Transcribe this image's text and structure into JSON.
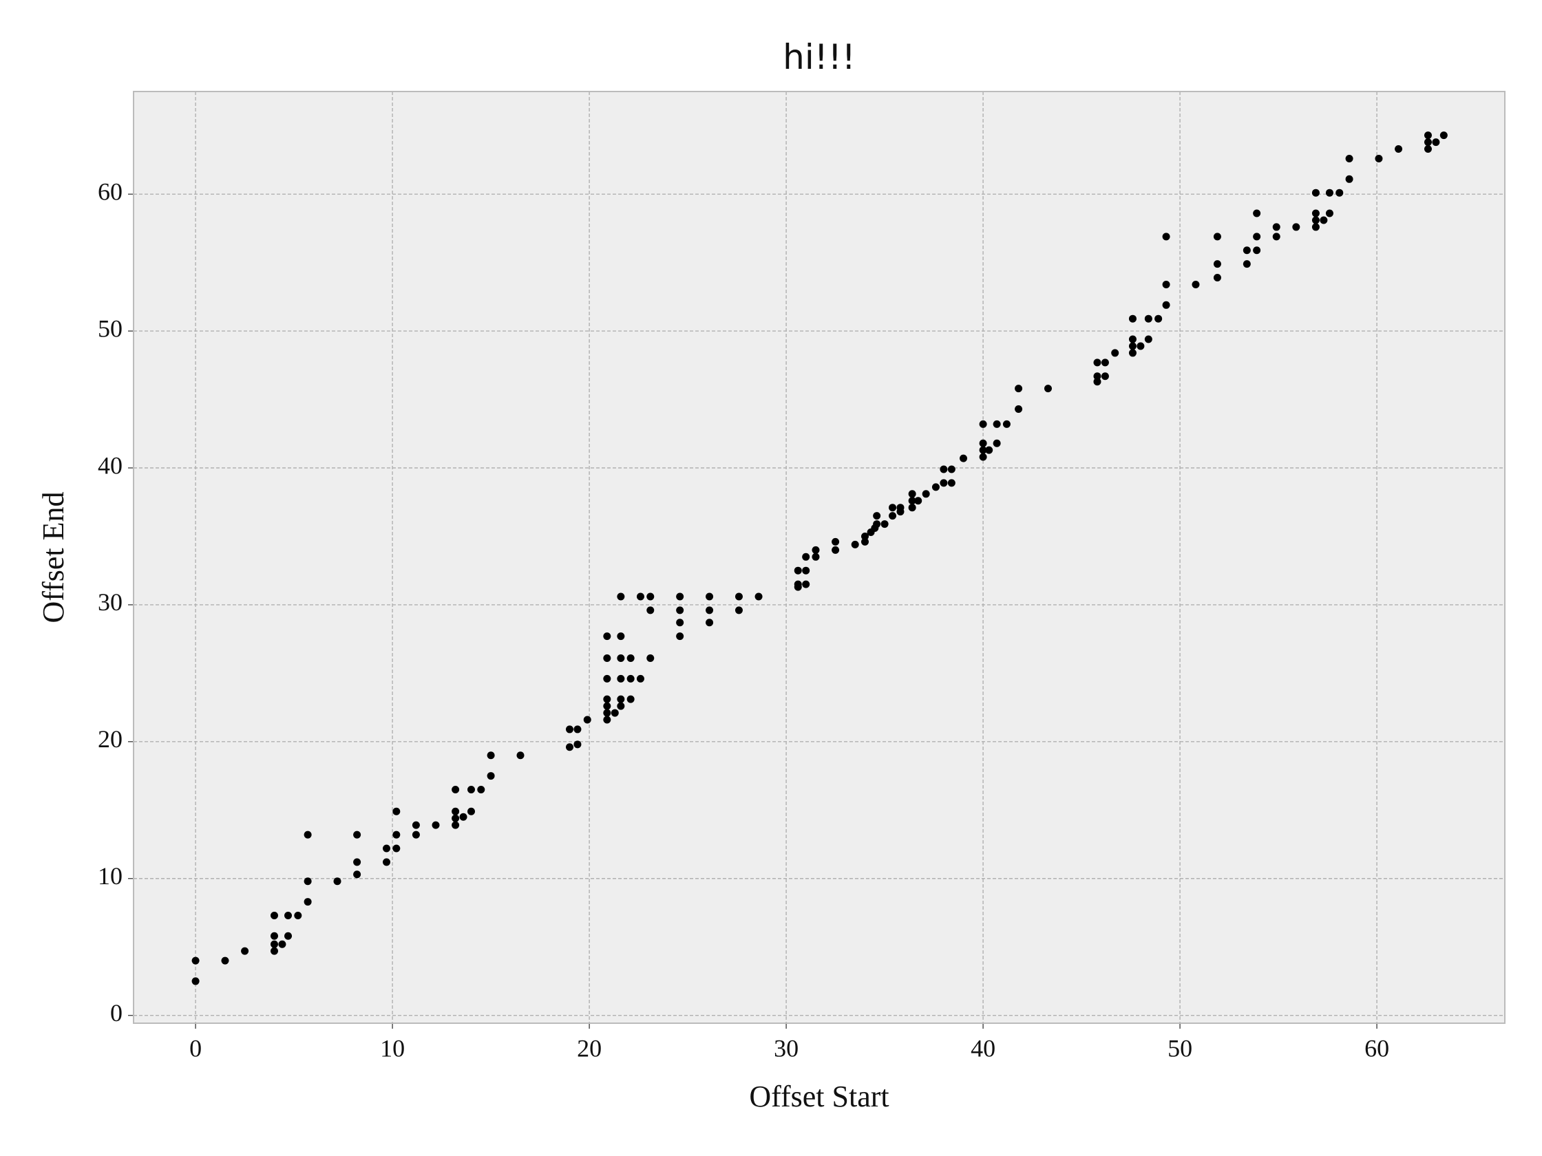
{
  "chart_data": {
    "type": "scatter",
    "title": "hi!!!",
    "x_label": "Offset Start",
    "y_label": "Offset End",
    "color": "#000000",
    "background": "#eeeeee",
    "grid": true,
    "xlim": [
      -3.15,
      66.5
    ],
    "ylim": [
      -0.57,
      67.5
    ],
    "xticks": [
      0,
      10,
      20,
      30,
      40,
      50,
      60
    ],
    "yticks": [
      0,
      10,
      20,
      30,
      40,
      50,
      60
    ],
    "x": [
      0,
      0,
      1.5,
      2.5,
      4,
      4,
      4,
      4,
      4.4,
      4.7,
      4.7,
      5.2,
      5.7,
      5.7,
      5.7,
      7.2,
      8.2,
      8.2,
      8.2,
      9.7,
      9.7,
      10.2,
      10.2,
      10.2,
      11.2,
      11.2,
      12.2,
      13.2,
      13.2,
      13.2,
      13.2,
      13.6,
      14,
      14,
      14.5,
      15,
      15,
      16.5,
      19,
      19,
      19.4,
      19.4,
      19.9,
      20.9,
      20.9,
      20.9,
      20.9,
      20.9,
      20.9,
      20.9,
      21.3,
      21.6,
      21.6,
      21.6,
      21.6,
      21.6,
      21.6,
      22.1,
      22.1,
      22.1,
      22.6,
      22.6,
      23.1,
      23.1,
      23.1,
      24.6,
      24.6,
      24.6,
      24.6,
      26.1,
      26.1,
      26.1,
      27.6,
      27.6,
      28.6,
      30.6,
      30.6,
      30.6,
      31,
      31,
      31,
      31.5,
      31.5,
      32.5,
      32.5,
      33.5,
      34,
      34,
      34.3,
      34.5,
      34.6,
      34.6,
      35,
      35.4,
      35.4,
      35.8,
      35.8,
      36.4,
      36.4,
      36.4,
      36.7,
      37.1,
      37.6,
      38,
      38,
      38.4,
      38.4,
      39,
      40,
      40,
      40,
      40,
      40.3,
      40.7,
      40.7,
      41.2,
      41.8,
      41.8,
      43.3,
      45.8,
      45.8,
      45.8,
      46.2,
      46.2,
      46.7,
      47.6,
      47.6,
      47.6,
      47.6,
      48,
      48.4,
      48.4,
      48.9,
      49.3,
      49.3,
      49.3,
      50.8,
      51.9,
      51.9,
      51.9,
      53.4,
      53.4,
      53.9,
      53.9,
      53.9,
      54.9,
      54.9,
      55.9,
      56.9,
      56.9,
      56.9,
      56.9,
      57.3,
      57.6,
      57.6,
      58.1,
      58.6,
      58.6,
      60.1,
      61.1,
      62.6,
      62.6,
      62.6,
      63,
      63.4
    ],
    "y": [
      4.0,
      2.5,
      4.0,
      4.7,
      7.3,
      5.8,
      5.2,
      4.7,
      5.2,
      7.3,
      5.8,
      7.3,
      13.2,
      9.8,
      8.3,
      9.8,
      13.2,
      11.2,
      10.3,
      12.2,
      11.2,
      14.9,
      13.2,
      12.2,
      13.9,
      13.2,
      13.9,
      16.5,
      14.9,
      14.4,
      13.9,
      14.5,
      16.5,
      14.9,
      16.5,
      19.0,
      17.5,
      19.0,
      20.9,
      19.6,
      20.9,
      19.8,
      21.6,
      27.7,
      26.1,
      24.6,
      23.1,
      22.6,
      22.1,
      21.6,
      22.1,
      30.6,
      27.7,
      26.1,
      24.6,
      23.1,
      22.6,
      26.1,
      24.6,
      23.1,
      30.6,
      24.6,
      30.6,
      29.6,
      26.1,
      30.6,
      29.6,
      28.7,
      27.7,
      30.6,
      29.6,
      28.7,
      30.6,
      29.6,
      30.6,
      32.5,
      31.5,
      31.3,
      33.5,
      32.5,
      31.5,
      34.0,
      33.5,
      34.6,
      34.0,
      34.4,
      35.0,
      34.6,
      35.3,
      35.6,
      36.5,
      35.9,
      35.9,
      37.1,
      36.5,
      37.1,
      36.8,
      38.1,
      37.6,
      37.1,
      37.6,
      38.1,
      38.6,
      39.9,
      38.9,
      39.9,
      38.9,
      40.7,
      43.2,
      41.8,
      41.3,
      40.8,
      41.3,
      43.2,
      41.8,
      43.2,
      45.8,
      44.3,
      45.8,
      47.7,
      46.7,
      46.3,
      47.7,
      46.7,
      48.4,
      50.9,
      49.4,
      48.9,
      48.4,
      48.9,
      50.9,
      49.4,
      50.9,
      56.9,
      53.4,
      51.9,
      53.4,
      56.9,
      54.9,
      53.9,
      55.9,
      54.9,
      58.6,
      56.9,
      55.9,
      57.6,
      56.9,
      57.6,
      60.1,
      58.6,
      58.1,
      57.6,
      58.1,
      60.1,
      58.6,
      60.1,
      62.6,
      61.1,
      62.6,
      63.3,
      64.3,
      63.8,
      63.3,
      63.8,
      64.3
    ]
  }
}
